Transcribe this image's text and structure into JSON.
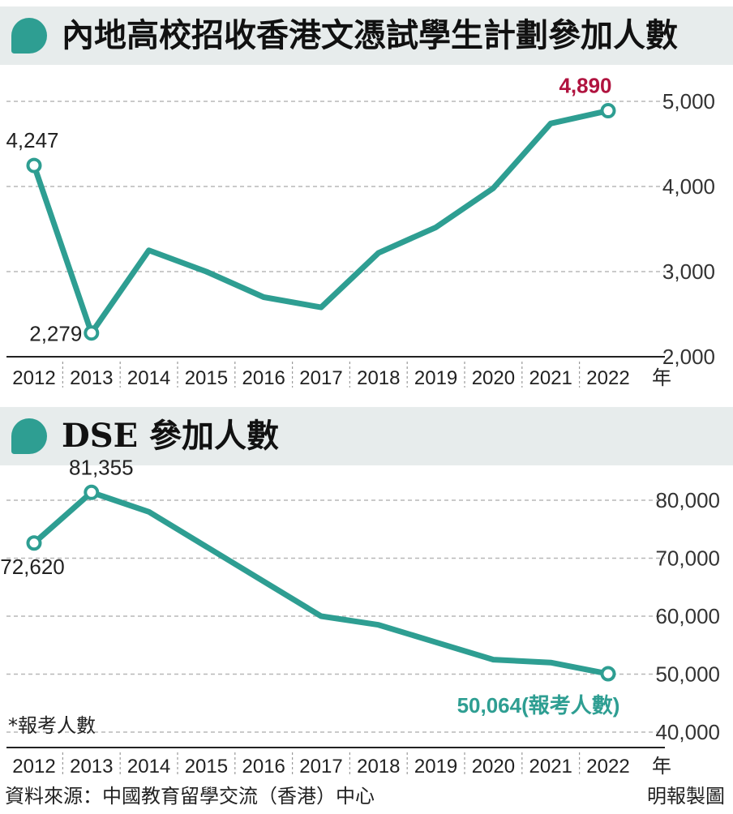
{
  "charts": [
    {
      "title": "內地高校招收香港文憑試學生計劃參加人數"
    },
    {
      "title": "DSE 參加人數",
      "note": "*報考人數"
    }
  ],
  "footer": {
    "source": "資料來源：中國教育留學交流（香港）中心",
    "credit": "明報製圖"
  },
  "colors": {
    "line": "#2e9e92",
    "highlight": "#b0133f",
    "header_bg": "#e7ecec",
    "axis": "#222222",
    "grid": "#b8b8b8"
  },
  "chart_data": [
    {
      "type": "line",
      "title": "內地高校招收香港文憑試學生計劃參加人數",
      "x": [
        "2012",
        "2013",
        "2014",
        "2015",
        "2016",
        "2017",
        "2018",
        "2019",
        "2020",
        "2021",
        "2022"
      ],
      "x_unit": "年",
      "values": [
        4247,
        2279,
        3250,
        3000,
        2700,
        2580,
        3220,
        3520,
        3980,
        4740,
        4890
      ],
      "ylim": [
        2000,
        5000
      ],
      "yticks": [
        2000,
        3000,
        4000,
        5000
      ],
      "ytick_labels": [
        "2,000",
        "3,000",
        "4,000",
        "5,000"
      ],
      "y_axis_side": "right",
      "grid": "dashed-horizontal",
      "labels": [
        {
          "index": 0,
          "text": "4,247",
          "color": "#222222"
        },
        {
          "index": 1,
          "text": "2,279",
          "color": "#222222"
        },
        {
          "index": 10,
          "text": "4,890",
          "color": "#b0133f"
        }
      ],
      "markers": [
        0,
        1,
        10
      ]
    },
    {
      "type": "line",
      "title": "DSE 參加人數",
      "x": [
        "2012",
        "2013",
        "2014",
        "2015",
        "2016",
        "2017",
        "2018",
        "2019",
        "2020",
        "2021",
        "2022"
      ],
      "x_unit": "年",
      "values": [
        72620,
        81355,
        78000,
        72000,
        66000,
        60000,
        58500,
        55500,
        52500,
        52000,
        50064
      ],
      "ylim": [
        40000,
        80000
      ],
      "yticks": [
        40000,
        50000,
        60000,
        70000,
        80000
      ],
      "ytick_labels": [
        "40,000",
        "50,000",
        "60,000",
        "70,000",
        "80,000"
      ],
      "y_axis_side": "right",
      "grid": "dashed-horizontal",
      "labels": [
        {
          "index": 0,
          "text": "72,620",
          "color": "#222222"
        },
        {
          "index": 1,
          "text": "81,355",
          "color": "#222222"
        },
        {
          "index": 10,
          "text": "50,064",
          "suffix": "(報考人數)",
          "color": "#2e9e92"
        }
      ],
      "markers": [
        0,
        1,
        10
      ]
    }
  ]
}
